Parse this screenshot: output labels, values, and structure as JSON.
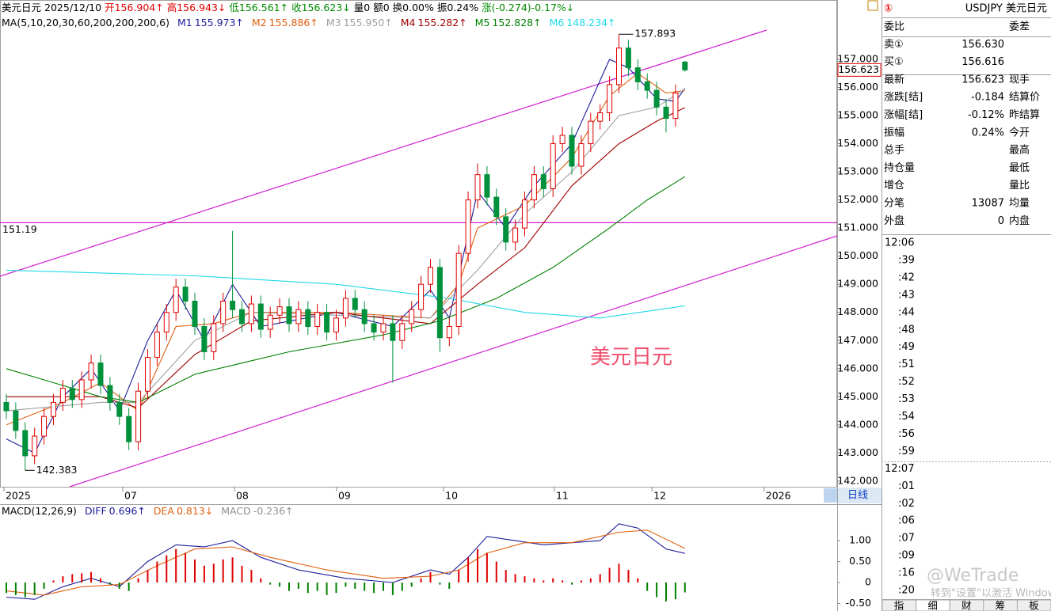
{
  "header": {
    "segments": [
      {
        "text": "美元日元",
        "color": "#000"
      },
      {
        "text": "2025/12/10",
        "color": "#000"
      },
      {
        "text": "开156.904↑",
        "color": "#e00000"
      },
      {
        "text": "高156.943↓",
        "color": "#e00000"
      },
      {
        "text": "低156.561↑",
        "color": "#008a00"
      },
      {
        "text": "收156.623↓",
        "color": "#008a00"
      },
      {
        "text": "量0",
        "color": "#000"
      },
      {
        "text": "额0",
        "color": "#000"
      },
      {
        "text": "换0.00%",
        "color": "#000"
      },
      {
        "text": "振0.24%",
        "color": "#000"
      },
      {
        "text": "涨(-0.274)-0.17%↓",
        "color": "#008a00"
      }
    ]
  },
  "chart_data": [
    {
      "type": "candlestick",
      "ma_label": "MA(5,10,20,30,60,200,200,200,6)",
      "up_color": "#e00000",
      "down_color": "#00913c",
      "xlim": [
        -0.67,
        88.15
      ],
      "ylim": [
        141.8,
        159.11
      ],
      "yticks": [
        {
          "value": 142,
          "label": "142.000"
        },
        {
          "value": 143,
          "label": "143.000"
        },
        {
          "value": 144,
          "label": "144.000"
        },
        {
          "value": 145,
          "label": "145.000"
        },
        {
          "value": 146,
          "label": "146.000"
        },
        {
          "value": 147,
          "label": "147.000"
        },
        {
          "value": 148,
          "label": "148.000"
        },
        {
          "value": 149,
          "label": "149.000"
        },
        {
          "value": 150,
          "label": "150.000"
        },
        {
          "value": 151,
          "label": "151.000"
        },
        {
          "value": 152,
          "label": "152.000"
        },
        {
          "value": 153,
          "label": "153.000"
        },
        {
          "value": 154,
          "label": "154.000"
        },
        {
          "value": 155,
          "label": "155.000"
        },
        {
          "value": 156,
          "label": "156.000"
        },
        {
          "value": 157,
          "label": "157.000"
        }
      ],
      "xticks": [
        {
          "value": -0.25,
          "label": "2025"
        },
        {
          "value": 12.35,
          "label": "07"
        },
        {
          "value": 24.2,
          "label": "08"
        },
        {
          "value": 35.04,
          "label": "09"
        },
        {
          "value": 46.4,
          "label": "10"
        },
        {
          "value": 58.15,
          "label": "11"
        },
        {
          "value": 68.5,
          "label": "12"
        },
        {
          "value": 80.4,
          "label": "2026"
        }
      ],
      "period": "日线",
      "hline": {
        "value": 151.19,
        "color": "#d020d0"
      },
      "annotation": "美元日元",
      "ohlc": [
        [
          144.8,
          145.1,
          144.2,
          144.5
        ],
        [
          144.5,
          144.8,
          143.5,
          143.8
        ],
        [
          143.8,
          144.1,
          142.383,
          142.9
        ],
        [
          142.9,
          143.9,
          142.6,
          143.6
        ],
        [
          143.6,
          144.6,
          143.3,
          144.3
        ],
        [
          144.3,
          145.1,
          144.0,
          144.8
        ],
        [
          144.8,
          145.6,
          144.5,
          145.3
        ],
        [
          145.3,
          145.6,
          144.6,
          144.9
        ],
        [
          144.9,
          145.9,
          144.6,
          145.6
        ],
        [
          145.6,
          146.5,
          145.3,
          146.2
        ],
        [
          146.2,
          146.5,
          145.1,
          145.4
        ],
        [
          145.4,
          145.7,
          144.5,
          144.8
        ],
        [
          144.8,
          145.1,
          144.0,
          144.3
        ],
        [
          144.3,
          144.6,
          143.1,
          143.4
        ],
        [
          143.4,
          145.5,
          143.1,
          145.2
        ],
        [
          145.2,
          146.7,
          144.9,
          146.4
        ],
        [
          146.4,
          147.6,
          146.1,
          147.3
        ],
        [
          147.3,
          148.3,
          147.0,
          148.0
        ],
        [
          148.0,
          149.2,
          147.7,
          148.9
        ],
        [
          148.9,
          149.2,
          148.1,
          148.4
        ],
        [
          148.4,
          148.7,
          147.2,
          147.5
        ],
        [
          147.5,
          147.8,
          146.3,
          146.6
        ],
        [
          146.6,
          147.9,
          146.3,
          147.6
        ],
        [
          147.6,
          148.7,
          147.3,
          148.4
        ],
        [
          148.4,
          150.9,
          147.8,
          148.1
        ],
        [
          148.1,
          148.4,
          147.3,
          147.6
        ],
        [
          147.6,
          148.6,
          147.3,
          148.3
        ],
        [
          148.3,
          148.6,
          147.1,
          147.4
        ],
        [
          147.4,
          148.2,
          147.1,
          147.9
        ],
        [
          147.9,
          148.5,
          147.6,
          148.2
        ],
        [
          148.2,
          148.5,
          147.3,
          147.6
        ],
        [
          147.6,
          148.4,
          147.3,
          148.1
        ],
        [
          148.1,
          148.4,
          147.2,
          147.5
        ],
        [
          147.5,
          148.3,
          147.2,
          148.0
        ],
        [
          148.0,
          148.3,
          147.0,
          147.3
        ],
        [
          147.3,
          148.1,
          147.0,
          147.8
        ],
        [
          147.8,
          148.8,
          147.5,
          148.5
        ],
        [
          148.5,
          148.8,
          147.8,
          148.1
        ],
        [
          148.1,
          148.4,
          147.3,
          147.6
        ],
        [
          147.6,
          147.9,
          147.0,
          147.3
        ],
        [
          147.3,
          147.9,
          147.0,
          147.6
        ],
        [
          147.6,
          147.9,
          145.5,
          147.0
        ],
        [
          147.0,
          147.9,
          146.7,
          147.6
        ],
        [
          147.6,
          148.4,
          147.3,
          148.1
        ],
        [
          148.1,
          149.3,
          147.8,
          149.0
        ],
        [
          149.0,
          149.9,
          148.7,
          149.6
        ],
        [
          149.6,
          149.9,
          146.6,
          147.1
        ],
        [
          147.1,
          147.8,
          146.8,
          147.5
        ],
        [
          147.5,
          150.4,
          147.2,
          150.1
        ],
        [
          150.1,
          152.3,
          149.8,
          152.0
        ],
        [
          152.0,
          153.3,
          151.7,
          152.9
        ],
        [
          152.9,
          153.2,
          151.8,
          152.1
        ],
        [
          152.1,
          152.4,
          151.1,
          151.4
        ],
        [
          151.4,
          151.7,
          150.2,
          150.5
        ],
        [
          150.5,
          151.3,
          150.2,
          151.0
        ],
        [
          151.0,
          152.3,
          150.7,
          152.0
        ],
        [
          152.0,
          153.2,
          151.7,
          152.9
        ],
        [
          152.9,
          153.2,
          152.1,
          152.4
        ],
        [
          152.4,
          154.3,
          152.1,
          154.0
        ],
        [
          154.0,
          154.6,
          153.7,
          154.3
        ],
        [
          154.3,
          154.6,
          152.9,
          153.2
        ],
        [
          153.2,
          154.3,
          152.9,
          154.0
        ],
        [
          154.0,
          155.1,
          153.7,
          154.8
        ],
        [
          154.8,
          155.4,
          154.5,
          155.1
        ],
        [
          155.1,
          156.4,
          154.8,
          156.1
        ],
        [
          156.1,
          157.893,
          155.8,
          157.4
        ],
        [
          157.4,
          157.7,
          156.4,
          156.7
        ],
        [
          156.7,
          157.0,
          155.9,
          156.2
        ],
        [
          156.2,
          156.5,
          155.6,
          155.9
        ],
        [
          155.9,
          156.2,
          155.0,
          155.3
        ],
        [
          155.3,
          155.6,
          154.4,
          154.9
        ],
        [
          154.9,
          156.1,
          154.6,
          155.8
        ],
        [
          156.904,
          156.943,
          156.561,
          156.623
        ]
      ],
      "series": [
        {
          "name": "M1",
          "legend_value": "155.973↑",
          "color": "#1c1c9c",
          "x": [
            0,
            3,
            6,
            9,
            12,
            15,
            18,
            21,
            24,
            27,
            35,
            41,
            45,
            47,
            50,
            53,
            56,
            60,
            64,
            66,
            69,
            71,
            72
          ],
          "values": [
            143.5,
            143,
            145,
            146,
            144.5,
            147,
            148.8,
            147,
            149,
            147.5,
            148,
            147.5,
            148.8,
            147.8,
            152.3,
            151,
            152.5,
            154,
            157,
            156.7,
            155.6,
            155.5,
            155.973
          ]
        },
        {
          "name": "M2",
          "legend_value": "155.886↑",
          "color": "#e06010",
          "x": [
            0,
            6,
            10,
            14,
            18,
            22,
            26,
            35,
            45,
            48,
            50,
            55,
            60,
            64,
            67,
            70,
            72
          ],
          "values": [
            144,
            144.8,
            145.5,
            144.5,
            147.5,
            147.6,
            148,
            148,
            147.8,
            149,
            151,
            151.8,
            153.5,
            155.7,
            156.5,
            155.8,
            155.886
          ]
        },
        {
          "name": "M3",
          "legend_value": "155.950↑",
          "color": "#a0a0a0",
          "x": [
            0,
            10,
            14,
            20,
            26,
            35,
            45,
            50,
            55,
            60,
            65,
            69,
            72
          ],
          "values": [
            144.5,
            144.8,
            144.8,
            147,
            148,
            147.9,
            147.8,
            149.5,
            151.5,
            153,
            155,
            155.3,
            155.95
          ]
        },
        {
          "name": "M4",
          "legend_value": "155.282↑",
          "color": "#a00000",
          "x": [
            0,
            10,
            14,
            20,
            26,
            35,
            45,
            50,
            55,
            60,
            65,
            69,
            72
          ],
          "values": [
            145,
            145,
            144.6,
            146.5,
            147.7,
            148,
            147.6,
            149,
            150.3,
            152.5,
            154,
            154.8,
            155.282
          ]
        },
        {
          "name": "M5",
          "legend_value": "152.828↑",
          "color": "#008000",
          "x": [
            0,
            5,
            10,
            14,
            20,
            25,
            30,
            40,
            46,
            52,
            58,
            64,
            68,
            72
          ],
          "values": [
            146,
            145.5,
            145,
            144.8,
            145.8,
            146.2,
            146.6,
            147.2,
            147.7,
            148.5,
            149.6,
            151,
            152,
            152.828
          ]
        },
        {
          "name": "M6",
          "legend_value": "148.234↑",
          "color": "#20d8e8",
          "x": [
            0,
            20,
            35,
            47,
            55,
            63,
            72
          ],
          "values": [
            149.5,
            149.3,
            149,
            148.5,
            148,
            147.8,
            148.234
          ]
        }
      ]
    },
    {
      "type": "macd",
      "legend_label": "MACD(12,26,9)",
      "ylim": [
        -0.68,
        1.87
      ],
      "yticks": [
        {
          "value": 1,
          "label": "1.00"
        },
        {
          "value": 0.5,
          "label": "0.50"
        },
        0,
        {
          "value": -0.5,
          "label": "-0.50"
        }
      ],
      "up_color": "#e00000",
      "down_color": "#008000",
      "series": [
        {
          "name": "DIFF",
          "legend_value": "0.696↑",
          "color": "#1c1c9c",
          "x": [
            0,
            3,
            6,
            9,
            12,
            15,
            18,
            21,
            24,
            27,
            31,
            36,
            41,
            45,
            47,
            49,
            51,
            54,
            57,
            60,
            63,
            65,
            67,
            70,
            72
          ],
          "values": [
            -0.35,
            -0.4,
            -0.1,
            0.1,
            -0.1,
            0.5,
            0.9,
            0.85,
            1.0,
            0.6,
            0.3,
            0.1,
            0,
            0.3,
            0.2,
            0.6,
            1.1,
            1.0,
            0.9,
            0.95,
            1.0,
            1.4,
            1.3,
            0.8,
            0.696
          ]
        },
        {
          "name": "DEA",
          "legend_value": "0.813↓",
          "color": "#e06010",
          "x": [
            0,
            4,
            8,
            12,
            16,
            20,
            24,
            28,
            34,
            40,
            45,
            48,
            51,
            55,
            60,
            65,
            68,
            72
          ],
          "values": [
            -0.2,
            -0.3,
            -0.1,
            -0.05,
            0.4,
            0.8,
            0.85,
            0.6,
            0.3,
            0.1,
            0.15,
            0.3,
            0.7,
            0.95,
            0.95,
            1.2,
            1.25,
            0.813
          ]
        },
        {
          "name": "MACD",
          "legend_value": "-0.236↑",
          "color": "#909090",
          "histogram": true,
          "values": [
            -0.25,
            -0.3,
            -0.35,
            -0.3,
            -0.15,
            0.05,
            0.15,
            0.2,
            0.22,
            0.25,
            0.1,
            -0.05,
            -0.15,
            -0.2,
            0.1,
            0.3,
            0.5,
            0.65,
            0.8,
            0.7,
            0.55,
            0.4,
            0.45,
            0.55,
            0.6,
            0.4,
            0.3,
            0.1,
            -0.05,
            -0.1,
            -0.2,
            -0.15,
            -0.25,
            -0.2,
            -0.3,
            -0.25,
            -0.1,
            -0.15,
            -0.2,
            -0.25,
            -0.2,
            -0.3,
            -0.2,
            -0.1,
            0.1,
            0.25,
            -0.05,
            -0.15,
            0.3,
            0.6,
            0.8,
            0.7,
            0.5,
            0.3,
            0.2,
            0.15,
            0.1,
            0.05,
            0.1,
            0.05,
            -0.05,
            0.05,
            0.1,
            0.2,
            0.35,
            0.45,
            0.3,
            0.1,
            -0.2,
            -0.35,
            -0.45,
            -0.4,
            -0.236
          ]
        }
      ]
    }
  ],
  "quote": {
    "icon": "①",
    "symbol": "USDJPY 美元日元",
    "rows": [
      {
        "label": "委比",
        "label2": "委差"
      },
      {
        "label": "卖①",
        "value": "156.630",
        "color": "#008a00"
      },
      {
        "label": "买①",
        "value": "156.616",
        "color": "#008a00"
      },
      {
        "label": "最新",
        "value": "156.623",
        "color": "#008a00",
        "label2": "现手"
      },
      {
        "label": "涨跌[结]",
        "value": "-0.184",
        "color": "#008a00",
        "label2": "结算价"
      },
      {
        "label": "涨幅[结]",
        "value": "-0.12%",
        "color": "#008a00",
        "label2": "昨结算"
      },
      {
        "label": "振幅",
        "value": "0.24%",
        "color": "#000",
        "label2": "今开"
      },
      {
        "label": "总手",
        "label2": "最高"
      },
      {
        "label": "持仓量",
        "label2": "最低"
      },
      {
        "label": "增仓",
        "label2": "量比"
      },
      {
        "label": "分笔",
        "value": "13087",
        "color": "#000",
        "label2": "均量"
      },
      {
        "label": "外盘",
        "value": "0",
        "color": "#e00000",
        "label2": "内盘"
      }
    ],
    "ticks": [
      "12:06",
      ":39",
      ":42",
      ":43",
      ":44",
      ":48",
      ":49",
      ":51",
      ":52",
      ":53",
      ":54",
      ":56",
      ":59",
      "12:07",
      ":01",
      ":02",
      ":06",
      ":07",
      ":09",
      ":16",
      ":20"
    ],
    "tabs": [
      "指",
      "细",
      "财",
      "筹",
      "板"
    ]
  },
  "watermark": {
    "brand": "@WeTrade",
    "activate": "转到\"设置\"以激活 Windows"
  }
}
